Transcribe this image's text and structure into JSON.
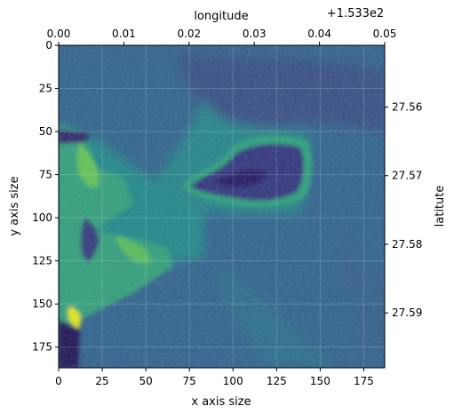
{
  "chart_data": {
    "type": "heatmap",
    "image": {
      "x_range": [
        0,
        187
      ],
      "y_range": [
        0,
        187
      ],
      "colormap": "viridis",
      "description_classes": [
        "water",
        "shallow",
        "reef",
        "land",
        "bright"
      ]
    },
    "bottom_axis": {
      "label": "x axis size",
      "ticks": [
        0,
        25,
        50,
        75,
        100,
        125,
        150,
        175
      ],
      "tick_labels": [
        "0",
        "25",
        "50",
        "75",
        "100",
        "125",
        "150",
        "175"
      ]
    },
    "left_axis": {
      "label": "y axis size",
      "ticks": [
        0,
        25,
        50,
        75,
        100,
        125,
        150,
        175
      ],
      "tick_labels": [
        "0",
        "25",
        "50",
        "75",
        "100",
        "125",
        "150",
        "175"
      ]
    },
    "top_axis": {
      "label": "longitude",
      "offset_text": "+1.533e2",
      "range": [
        0.0,
        0.05
      ],
      "ticks": [
        0.0,
        0.01,
        0.02,
        0.03,
        0.04,
        0.05
      ],
      "tick_labels": [
        "0.00",
        "0.01",
        "0.02",
        "0.03",
        "0.04",
        "0.05"
      ]
    },
    "right_axis": {
      "label": "latitute",
      "range": [
        27.551,
        27.598
      ],
      "ticks": [
        27.56,
        27.57,
        27.58,
        27.59
      ],
      "tick_labels": [
        "27.56",
        "27.57",
        "27.58",
        "27.59"
      ]
    },
    "grid": true,
    "colors": {
      "water": "#3b5f8c",
      "shallow": "#2f8a8c",
      "reef": "#38a282",
      "land": "#433e85",
      "bright": "#d8e219"
    }
  }
}
